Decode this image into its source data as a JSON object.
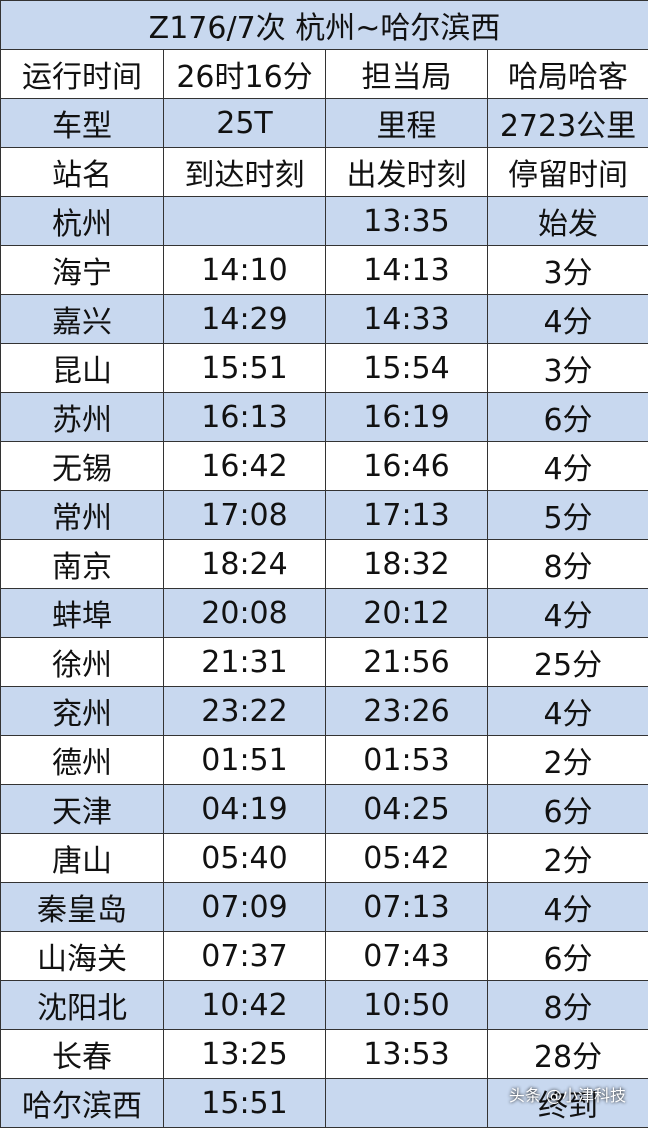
{
  "table": {
    "title": "Z176/7次 杭州~哈尔滨西",
    "rows": [
      [
        "运行时间",
        "26时16分",
        "担当局",
        "哈局哈客"
      ],
      [
        "车型",
        "25T",
        "里程",
        "2723公里"
      ],
      [
        "站名",
        "到达时刻",
        "出发时刻",
        "停留时间"
      ],
      [
        "杭州",
        null,
        "13:35",
        "始发"
      ],
      [
        "海宁",
        "14:10",
        "14:13",
        "3分"
      ],
      [
        "嘉兴",
        "14:29",
        "14:33",
        "4分"
      ],
      [
        "昆山",
        "15:51",
        "15:54",
        "3分"
      ],
      [
        "苏州",
        "16:13",
        "16:19",
        "6分"
      ],
      [
        "无锡",
        "16:42",
        "16:46",
        "4分"
      ],
      [
        "常州",
        "17:08",
        "17:13",
        "5分"
      ],
      [
        "南京",
        "18:24",
        "18:32",
        "8分"
      ],
      [
        "蚌埠",
        "20:08",
        "20:12",
        "4分"
      ],
      [
        "徐州",
        "21:31",
        "21:56",
        "25分"
      ],
      [
        "兖州",
        "23:22",
        "23:26",
        "4分"
      ],
      [
        "德州",
        "01:51",
        "01:53",
        "2分"
      ],
      [
        "天津",
        "04:19",
        "04:25",
        "6分"
      ],
      [
        "唐山",
        "05:40",
        "05:42",
        "2分"
      ],
      [
        "秦皇岛",
        "07:09",
        "07:13",
        "4分"
      ],
      [
        "山海关",
        "07:37",
        "07:43",
        "6分"
      ],
      [
        "沈阳北",
        "10:42",
        "10:50",
        "8分"
      ],
      [
        "长春",
        "13:25",
        "13:53",
        "28分"
      ],
      [
        "哈尔滨西",
        "15:51",
        null,
        "终到"
      ]
    ]
  },
  "watermark": "头条 @小津科技"
}
